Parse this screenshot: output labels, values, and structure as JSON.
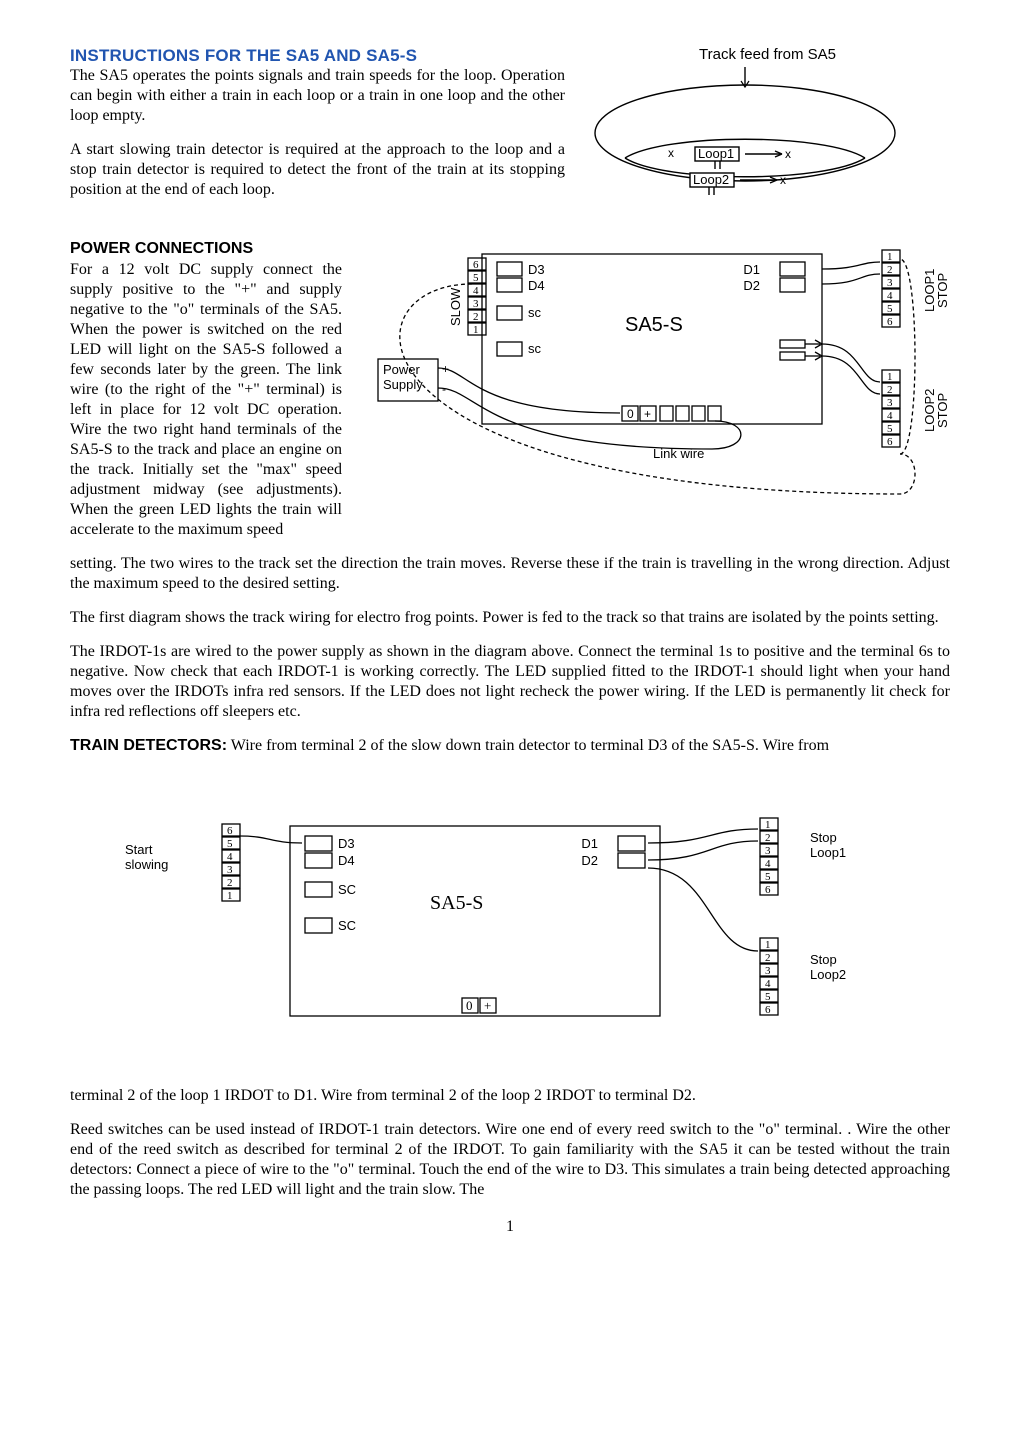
{
  "heading": "INSTRUCTIONS FOR THE SA5 AND SA5-S",
  "para1": "The SA5 operates the points signals and train speeds for the loop. Operation can begin with either a train in each loop or a train in one loop and the other loop empty.",
  "para2": "A start slowing train detector is required at the approach to the loop and a stop train detector is required to detect the front of the train at its stopping position at the end of each loop.",
  "subheading_power": "POWER CONNECTIONS",
  "para_power": "For a 12 volt DC supply connect the supply positive to the \"+\" and supply negative to the \"o\" terminals of the SA5. When the power is switched on the red LED will light on the SA5-S followed a few seconds later by the green. The link wire (to the right of the \"+\" terminal) is left in place for 12 volt DC operation. Wire the two right hand terminals of the SA5-S to the track and place an engine on the track. Initially set the \"max\" speed adjustment midway (see adjustments). When the green LED lights the train will accelerate to the maximum speed",
  "para_setting": "setting.  The two wires to the track set the direction the train moves.  Reverse these if the train is travelling in the wrong direction.  Adjust the maximum speed to the desired setting.",
  "para_first_diag": "The first diagram shows the track wiring for electro frog points.  Power is fed to the track so that trains are isolated by the points setting.",
  "para_irdot": "The IRDOT-1s are wired to the power supply as shown in the diagram above.  Connect the terminal 1s to positive and the terminal 6s to negative.  Now check that each IRDOT-1 is working correctly.  The LED supplied fitted to the IRDOT-1 should light when your hand moves over the IRDOTs infra red sensors.  If the LED does not light recheck the power wiring.  If the LED is permanently lit check for infra red reflections off sleepers etc.",
  "train_det_label": "TRAIN DETECTORS:",
  "para_train_det": " Wire from terminal 2 of the slow down train detector to terminal D3 of the SA5-S.  Wire from",
  "para_term2": "terminal 2 of the loop 1 IRDOT to D1.  Wire from terminal 2 of the loop 2 IRDOT to terminal D2.",
  "para_reed": "Reed switches can be used instead of IRDOT-1 train detectors.  Wire one end of every reed switch to the \"o\" terminal. . Wire the other end of the reed switch as described for terminal 2 of the IRDOT.  To gain familiarity with the SA5 it can be tested without the train detectors: Connect a piece of wire to the \"o\" terminal.  Touch the end of the wire to D3.  This simulates a train being detected approaching the passing loops.  The red LED will light and the train slow.  The",
  "page_number": "1",
  "diagram1": {
    "title": "Track feed from SA5",
    "loop1": "Loop1",
    "loop2": "Loop2",
    "colors": {
      "stroke": "#000000",
      "fill": "none"
    }
  },
  "diagram2": {
    "sa5s_title": "SA5-S",
    "slow_label": "SLOW",
    "power_supply_l1": "Power",
    "power_supply_l2": "Supply",
    "link_wire": "Link wire",
    "left_d_terms": [
      "D3",
      "D4"
    ],
    "right_d_terms": [
      "D1",
      "D2"
    ],
    "sc_label": "sc",
    "loop1_label": "LOOP1",
    "loop1_stop": "STOP",
    "loop2_label": "LOOP2",
    "loop2_stop": "STOP",
    "zero_label": "0",
    "plus_label": "+",
    "plus_minus_plus": "+",
    "plus_minus_minus": "-",
    "terminal_nums": [
      "6",
      "5",
      "4",
      "3",
      "2",
      "1"
    ],
    "right_nums_a": [
      "1",
      "2",
      "3",
      "4",
      "5",
      "6"
    ],
    "right_nums_b": [
      "1",
      "2",
      "3",
      "4",
      "5",
      "6"
    ],
    "colors": {
      "stroke": "#000000",
      "dash": "4,3"
    }
  },
  "diagram3": {
    "sa5s_title": "SA5-S",
    "start_slowing_l1": "Start",
    "start_slowing_l2": "slowing",
    "stop_loop1_l1": "Stop",
    "stop_loop1_l2": "Loop1",
    "stop_loop2_l1": "Stop",
    "stop_loop2_l2": "Loop2",
    "left_d_terms": [
      "D3",
      "D4"
    ],
    "right_d_terms": [
      "D1",
      "D2"
    ],
    "sc_label": "SC",
    "terminal_nums": [
      "6",
      "5",
      "4",
      "3",
      "2",
      "1"
    ],
    "right_nums_a": [
      "1",
      "2",
      "3",
      "4",
      "5",
      "6"
    ],
    "right_nums_b": [
      "1",
      "2",
      "3",
      "4",
      "5",
      "6"
    ],
    "zero_label": "0",
    "plus_label": "+",
    "colors": {
      "stroke": "#000000"
    }
  },
  "styles": {
    "heading_color": "#2155b0",
    "body_fontsize": 16,
    "heading_fontsize": 17
  }
}
